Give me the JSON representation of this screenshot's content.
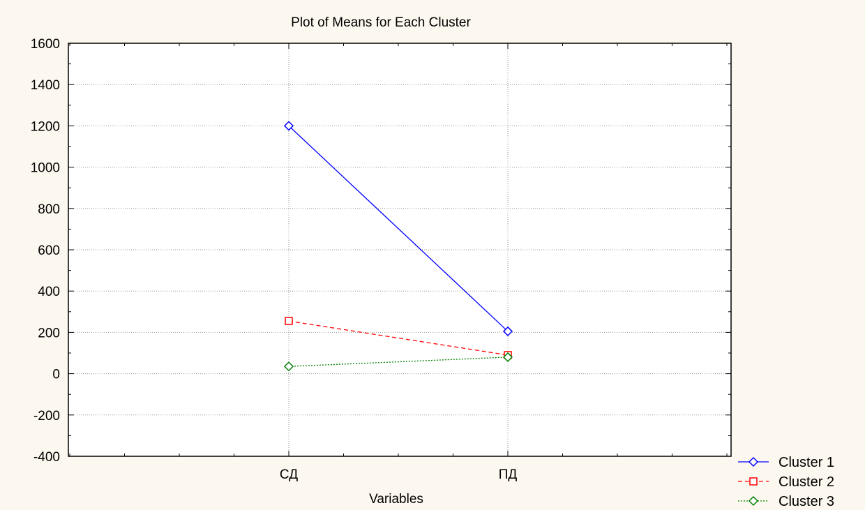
{
  "chart_data": {
    "type": "line",
    "title": "Plot of Means for Each Cluster",
    "xlabel": "Variables",
    "ylabel": "",
    "categories": [
      "СД",
      "ПД"
    ],
    "ylim": [
      -400,
      1600
    ],
    "yticks": [
      -400,
      -200,
      0,
      200,
      400,
      600,
      800,
      1000,
      1200,
      1400,
      1600
    ],
    "grid": true,
    "legend_position": "bottom-right",
    "series": [
      {
        "name": "Cluster  1",
        "values": [
          1200,
          205
        ],
        "color": "#0000ff",
        "marker": "diamond",
        "dash": "solid"
      },
      {
        "name": "Cluster  2",
        "values": [
          255,
          90
        ],
        "color": "#ff0000",
        "marker": "square",
        "dash": "dashed"
      },
      {
        "name": "Cluster  3",
        "values": [
          35,
          80
        ],
        "color": "#008000",
        "marker": "diamond",
        "dash": "dotted"
      }
    ]
  }
}
